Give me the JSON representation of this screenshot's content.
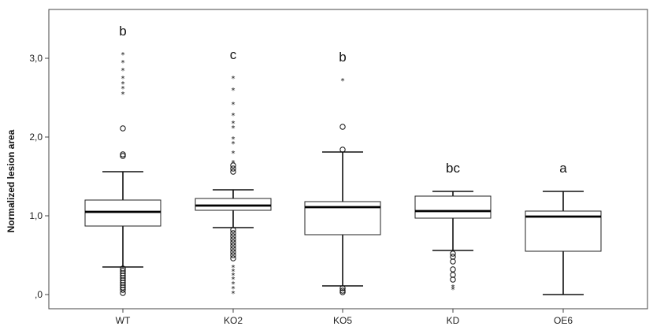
{
  "chart_data": {
    "type": "box",
    "title": "",
    "xlabel": "",
    "ylabel": "Normalized lesion area",
    "ylim": [
      -0.05,
      3.6
    ],
    "yticks": [
      {
        "value": 0.0,
        "label": ",0"
      },
      {
        "value": 1.0,
        "label": "1,0"
      },
      {
        "value": 2.0,
        "label": "2,0"
      },
      {
        "value": 3.0,
        "label": "3,0"
      }
    ],
    "categories": [
      "WT",
      "KO2",
      "KO5",
      "KD",
      "OE6"
    ],
    "boxes": [
      {
        "category": "WT",
        "letter": "b",
        "whisker_low": 0.35,
        "q1": 0.87,
        "median": 1.05,
        "q3": 1.2,
        "whisker_high": 1.56,
        "outliers_circle": [
          2.11,
          1.78,
          1.76,
          0.33,
          0.3,
          0.27,
          0.24,
          0.21,
          0.18,
          0.15,
          0.12,
          0.09,
          0.06,
          0.02
        ],
        "outliers_extreme": [
          3.05,
          2.95,
          2.85,
          2.75,
          2.68,
          2.62,
          2.55
        ]
      },
      {
        "category": "KO2",
        "letter": "c",
        "whisker_low": 0.85,
        "q1": 1.07,
        "median": 1.13,
        "q3": 1.22,
        "whisker_high": 1.33,
        "outliers_circle": [
          1.64,
          1.6,
          1.56,
          0.82,
          0.78,
          0.74,
          0.7,
          0.66,
          0.62,
          0.58,
          0.54,
          0.5,
          0.46
        ],
        "outliers_extreme": [
          2.75,
          2.6,
          2.42,
          2.28,
          2.18,
          2.12,
          1.98,
          1.92,
          1.8,
          1.68,
          0.35,
          0.3,
          0.25,
          0.2,
          0.14,
          0.08,
          0.02
        ]
      },
      {
        "category": "KO5",
        "letter": "b",
        "whisker_low": 0.11,
        "q1": 0.76,
        "median": 1.11,
        "q3": 1.18,
        "whisker_high": 1.81,
        "outliers_circle": [
          2.13,
          1.84,
          0.08,
          0.05,
          0.03
        ],
        "outliers_extreme": [
          2.72
        ]
      },
      {
        "category": "KD",
        "letter": "bc",
        "whisker_low": 0.56,
        "q1": 0.97,
        "median": 1.06,
        "q3": 1.25,
        "whisker_high": 1.31,
        "outliers_circle": [
          0.52,
          0.48,
          0.42,
          0.32,
          0.25,
          0.19
        ],
        "outliers_extreme": [
          0.1,
          0.07
        ]
      },
      {
        "category": "OE6",
        "letter": "a",
        "whisker_low": 0.0,
        "q1": 0.55,
        "median": 0.99,
        "q3": 1.06,
        "whisker_high": 1.31,
        "outliers_circle": [],
        "outliers_extreme": []
      }
    ],
    "grid": false,
    "legend": "none"
  }
}
